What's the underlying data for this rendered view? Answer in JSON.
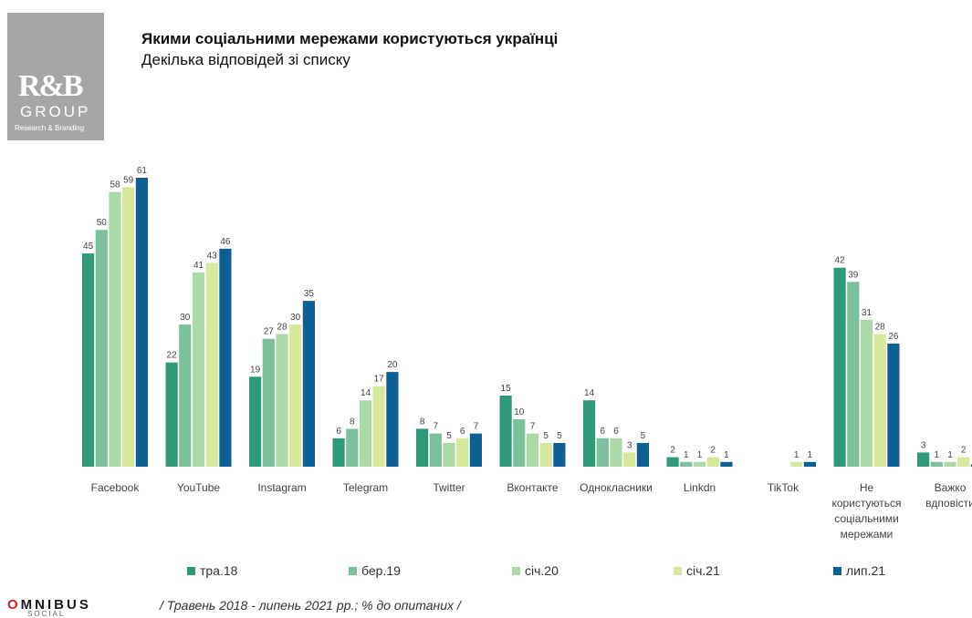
{
  "header": {
    "title": "Якими соціальними мережами користуються українці",
    "subtitle": "Декілька відповідей зі списку"
  },
  "logo": {
    "mark": "R&B",
    "group": "GROUP",
    "tagline": "Research & Branding"
  },
  "footer": {
    "brand_first": "O",
    "brand_rest": "MNIBUS",
    "brand_sub": "SOCIAL",
    "note": "/ Травень 2018 - липень 2021 рр.; % до опитаних /"
  },
  "chart_data": {
    "type": "bar",
    "categories": [
      "Facebook",
      "YouTube",
      "Instagram",
      "Telegram",
      "Twitter",
      "Вконтакте",
      "Однокласники",
      "Linkdn",
      "TikTok",
      "Не користуються соціальними мережами",
      "Важко вдповісти"
    ],
    "series": [
      {
        "name": "тра.18",
        "color": "#2e9a79",
        "values": [
          45,
          22,
          19,
          6,
          8,
          15,
          14,
          2,
          null,
          42,
          3
        ]
      },
      {
        "name": "бер.19",
        "color": "#7cc19b",
        "values": [
          50,
          30,
          27,
          8,
          7,
          10,
          6,
          1,
          null,
          39,
          1
        ]
      },
      {
        "name": "січ.20",
        "color": "#abd9a7",
        "values": [
          58,
          41,
          28,
          14,
          5,
          7,
          6,
          1,
          null,
          31,
          1
        ]
      },
      {
        "name": "січ.21",
        "color": "#d5e89c",
        "values": [
          59,
          43,
          30,
          17,
          6,
          5,
          3,
          2,
          1,
          28,
          2
        ]
      },
      {
        "name": "лип.21",
        "color": "#0e5f94",
        "values": [
          61,
          46,
          35,
          20,
          7,
          5,
          5,
          1,
          1,
          26,
          0.5
        ]
      }
    ],
    "value_labels": [
      [
        "45",
        "22",
        "19",
        "6",
        "8",
        "15",
        "14",
        "2",
        "",
        "42",
        "3"
      ],
      [
        "50",
        "30",
        "27",
        "8",
        "7",
        "10",
        "6",
        "1",
        "",
        "39",
        "1"
      ],
      [
        "58",
        "41",
        "28",
        "14",
        "5",
        "7",
        "6",
        "1",
        "",
        "31",
        "1"
      ],
      [
        "59",
        "43",
        "30",
        "17",
        "6",
        "5",
        "3",
        "2",
        "1",
        "28",
        "2"
      ],
      [
        "61",
        "46",
        "35",
        "20",
        "7",
        "5",
        "5",
        "1",
        "1",
        "26",
        ""
      ]
    ],
    "ylim": [
      0,
      65
    ],
    "grid": false,
    "legend_position": "bottom"
  }
}
